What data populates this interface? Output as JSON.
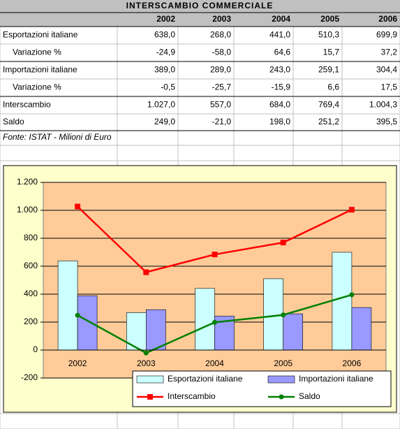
{
  "table": {
    "title": "INTERSCAMBIO COMMERCIALE",
    "years": [
      "2002",
      "2003",
      "2004",
      "2005",
      "2006"
    ],
    "rows": [
      {
        "label": "Esportazioni italiane",
        "cells": [
          "638,0",
          "268,0",
          "441,0",
          "510,3",
          "699,9"
        ]
      },
      {
        "label": "Variazione %",
        "cells": [
          "-24,9",
          "-58,0",
          "64,6",
          "15,7",
          "37,2"
        ]
      },
      {
        "label": "Importazioni italiane",
        "cells": [
          "389,0",
          "289,0",
          "243,0",
          "259,1",
          "304,4"
        ]
      },
      {
        "label": "Variazione %",
        "cells": [
          "-0,5",
          "-25,7",
          "-15,9",
          "6,6",
          "17,5"
        ]
      },
      {
        "label": "Interscambio",
        "cells": [
          "1.027,0",
          "557,0",
          "684,0",
          "769,4",
          "1.004,3"
        ]
      },
      {
        "label": "Saldo",
        "cells": [
          "249,0",
          "-21,0",
          "198,0",
          "251,2",
          "395,5"
        ]
      }
    ],
    "footnote": "Fonte: ISTAT - Milioni di Euro"
  },
  "chart_data": {
    "type": "bar",
    "categories": [
      "2002",
      "2003",
      "2004",
      "2005",
      "2006"
    ],
    "series": [
      {
        "name": "Esportazioni italiane",
        "type": "bar",
        "color": "#ccffff",
        "values": [
          638,
          268,
          441,
          510.3,
          699.9
        ]
      },
      {
        "name": "Importazioni italiane",
        "type": "bar",
        "color": "#9999ff",
        "values": [
          389,
          289,
          243,
          259.1,
          304.4
        ]
      },
      {
        "name": "Interscambio",
        "type": "line",
        "color": "#ff0000",
        "marker": "square",
        "values": [
          1027,
          557,
          684,
          769.4,
          1004.3
        ]
      },
      {
        "name": "Saldo",
        "type": "line",
        "color": "#008000",
        "marker": "circle",
        "values": [
          249,
          -21,
          198,
          251.2,
          395.5
        ]
      }
    ],
    "ylim": [
      -200,
      1200
    ],
    "yticks": [
      -200,
      0,
      200,
      400,
      600,
      800,
      {
        "value": 1000,
        "label": "1.000"
      },
      {
        "value": 1200,
        "label": "1.200"
      }
    ],
    "grid": true,
    "legend": "bottom-right"
  }
}
